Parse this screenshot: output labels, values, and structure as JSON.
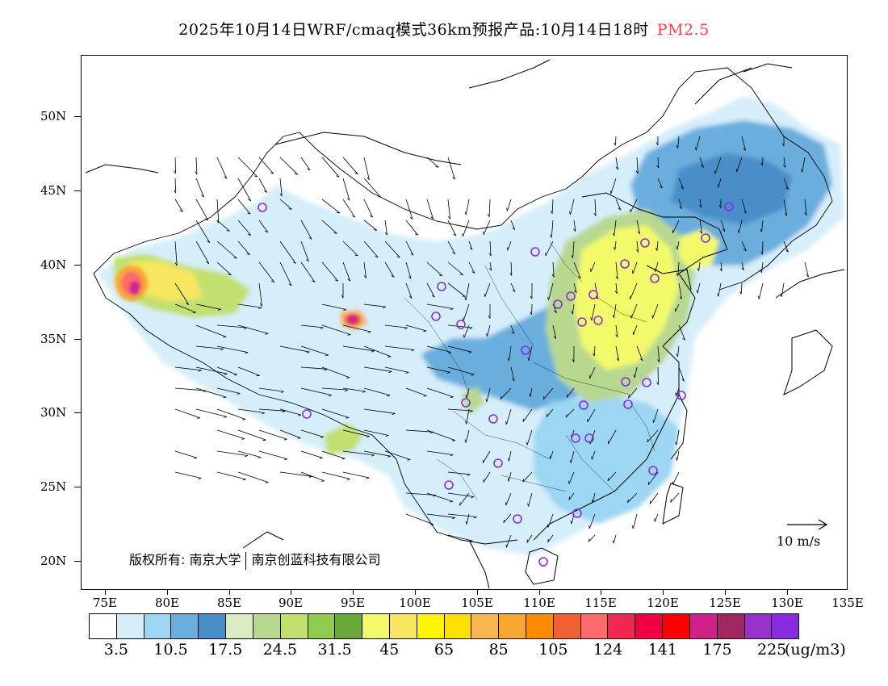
{
  "header": {
    "title": "2025年10月14日WRF/cmaq模式36km预报产品:10月14日18时",
    "variable": "PM2.5",
    "variable_color": "#ff4040"
  },
  "map": {
    "lat_labels": [
      "50N",
      "45N",
      "40N",
      "35N",
      "30N",
      "25N",
      "20N"
    ],
    "lon_labels": [
      "75E",
      "80E",
      "85E",
      "90E",
      "95E",
      "100E",
      "105E",
      "110E",
      "115E",
      "120E",
      "125E",
      "130E",
      "135E"
    ],
    "copyright_part1": "版权所有: 南京大学",
    "copyright_part2": "南京创蓝科技有限公司",
    "wind_reference_label": "10 m/s",
    "station_marker_color": "#8a2be2"
  },
  "colorbar": {
    "colors": [
      "#ffffff",
      "#d6eefa",
      "#9cd6f2",
      "#6aaede",
      "#4a8ec8",
      "#dcebc2",
      "#b8d890",
      "#c2e070",
      "#90cc50",
      "#6aaa3a",
      "#f2fa6a",
      "#f6e660",
      "#fff500",
      "#ffe000",
      "#f8b850",
      "#f8a830",
      "#ff8a00",
      "#f06030",
      "#ff6a6a",
      "#f02850",
      "#f00040",
      "#ff0000",
      "#d0208a",
      "#a02860",
      "#9932cc",
      "#8a2be2"
    ],
    "tick_labels": [
      "3.5",
      "10.5",
      "17.5",
      "24.5",
      "31.5",
      "45",
      "65",
      "85",
      "105",
      "124",
      "141",
      "175",
      "225"
    ],
    "unit": "(ug/m3)"
  }
}
